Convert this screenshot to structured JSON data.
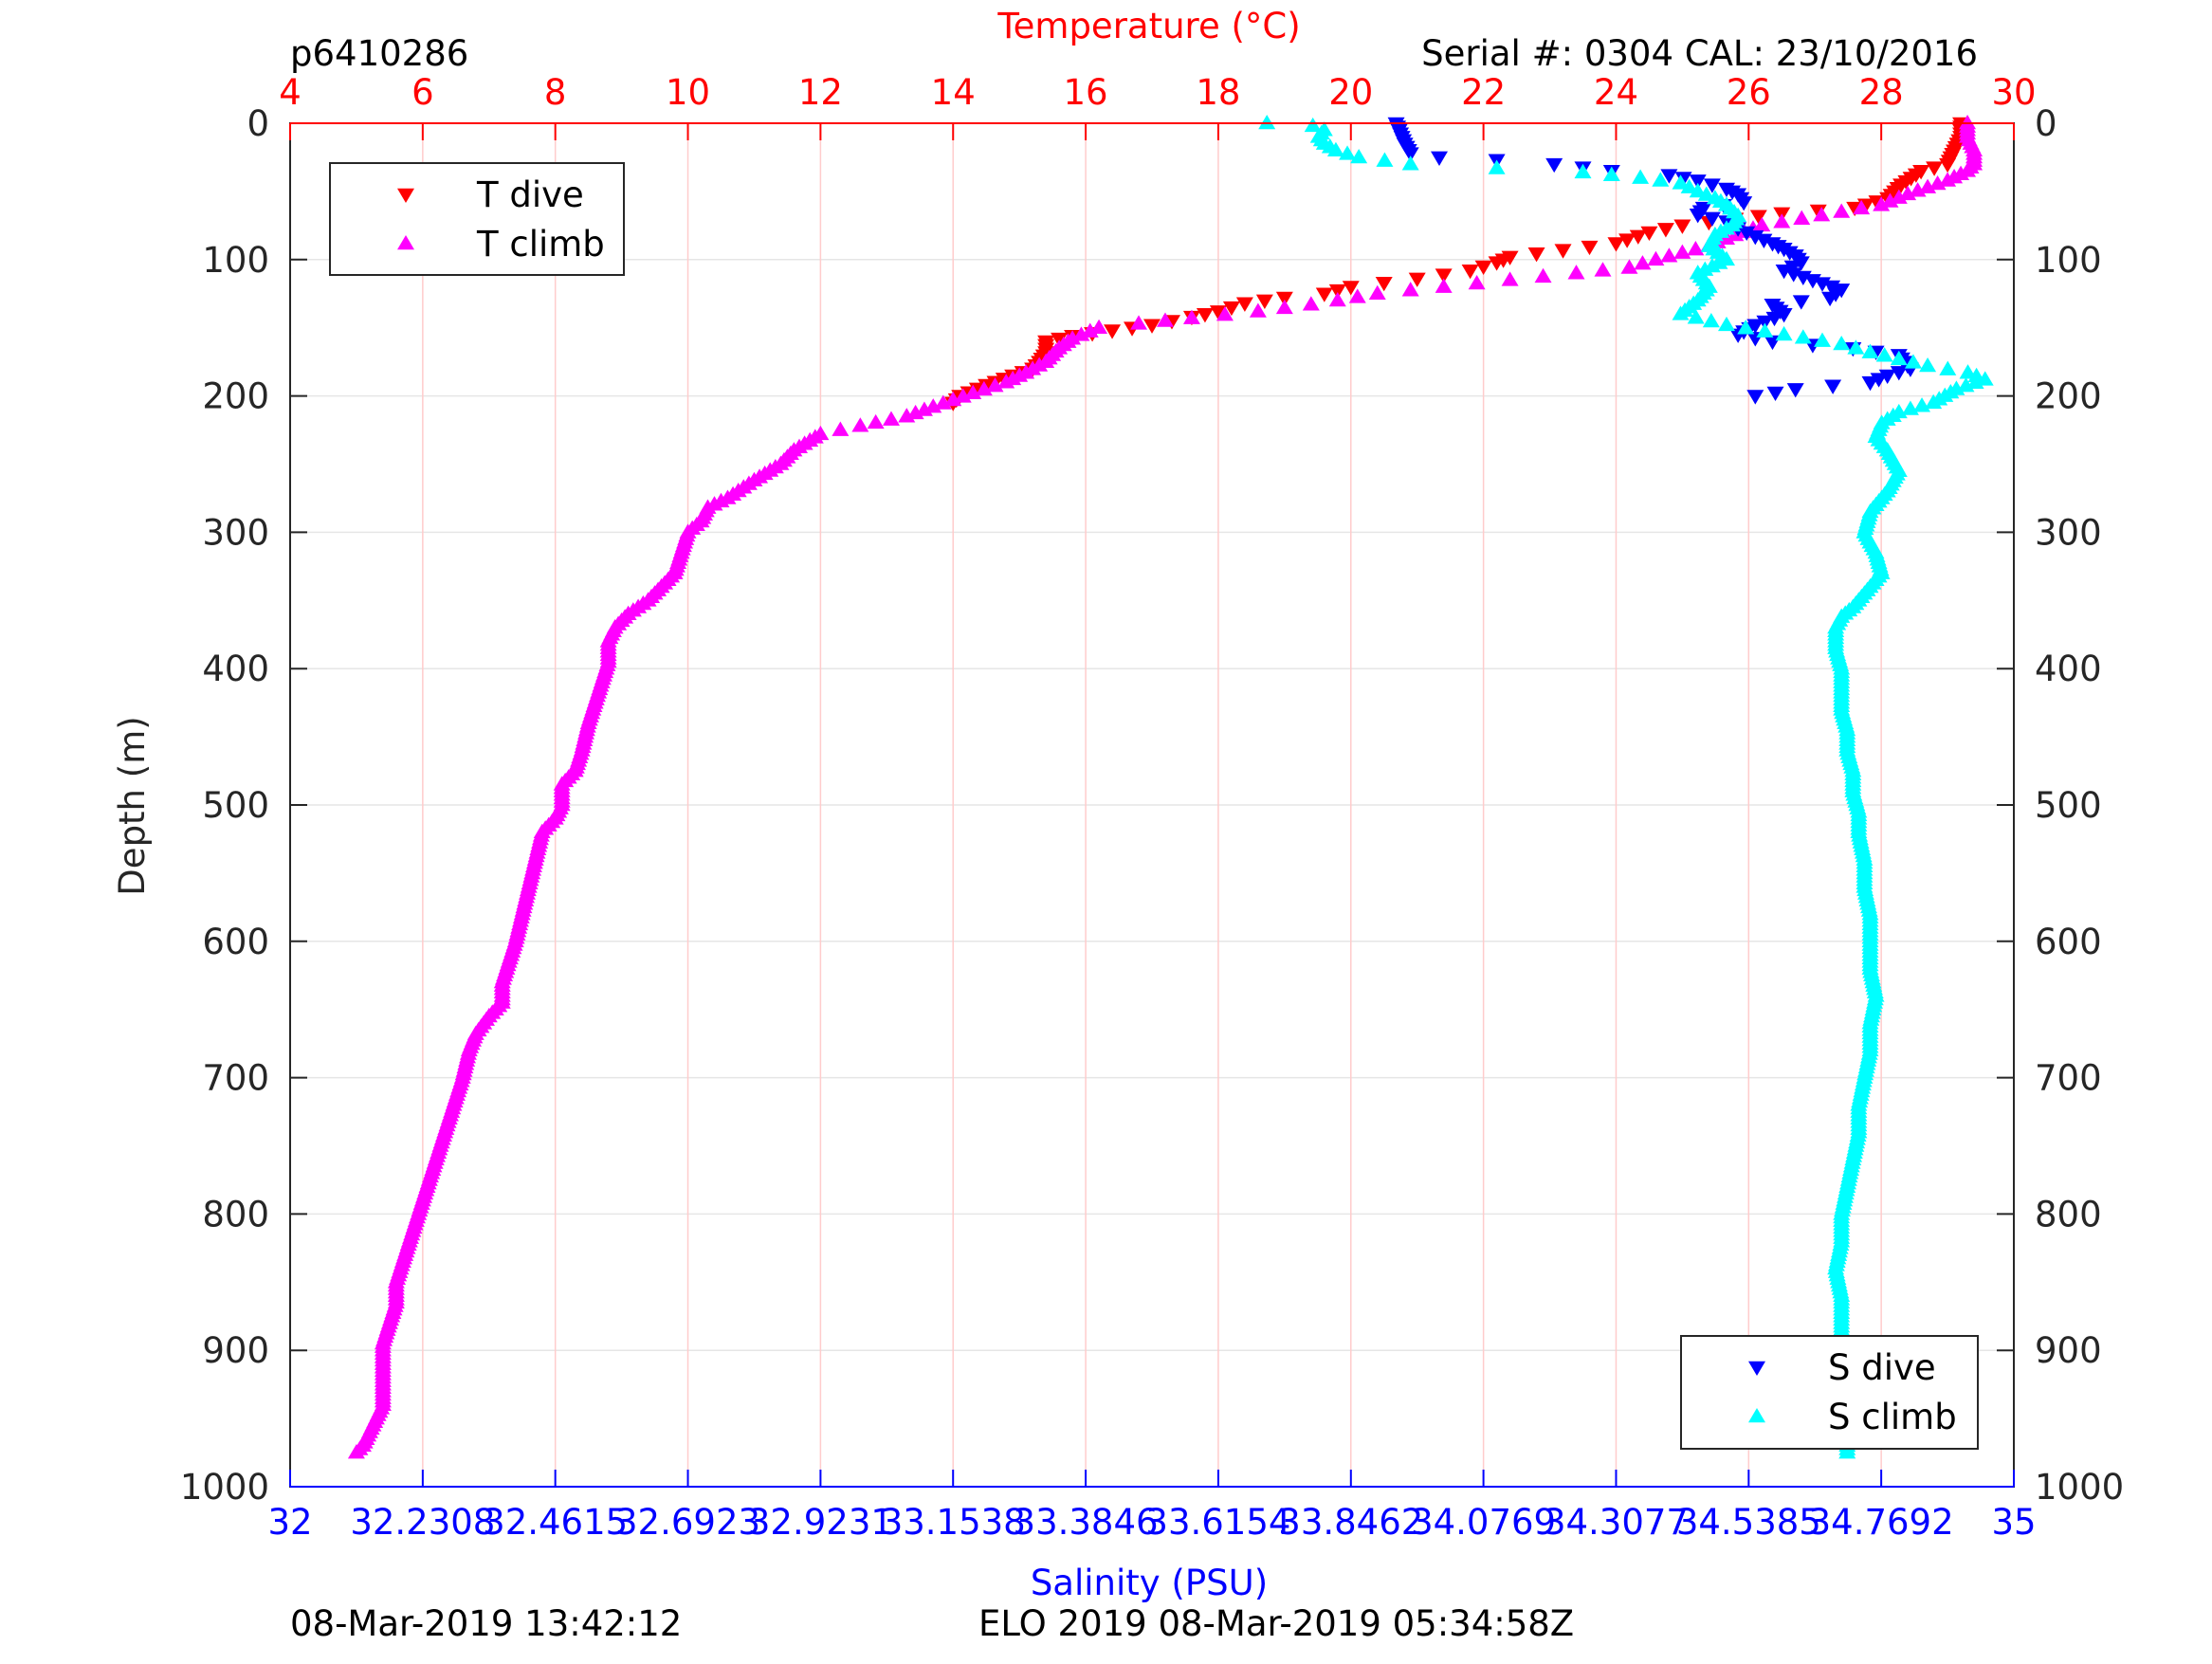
{
  "header": {
    "glider_id": "p6410286",
    "serial_cal": "Serial #: 0304  CAL: 23/10/2016"
  },
  "footer": {
    "plot_time": "08-Mar-2019 13:42:12",
    "mission": "ELO 2019 08-Mar-2019 05:34:58Z"
  },
  "colors": {
    "t_dive": "#ff0000",
    "t_climb": "#ff00ff",
    "s_dive": "#0000ff",
    "s_climb": "#00ffff",
    "temperature_axis": "#ff0000",
    "salinity_axis": "#0000ff",
    "grid": "#ffcccc"
  },
  "chart_data": {
    "type": "scatter",
    "ylabel": "Depth (m)",
    "ylim": [
      0,
      1000
    ],
    "y_reversed": true,
    "y_ticks": [
      "0",
      "100",
      "200",
      "300",
      "400",
      "500",
      "600",
      "700",
      "800",
      "900",
      "1000"
    ],
    "temperature_axis": {
      "label": "Temperature (°C)",
      "position": "top",
      "xlim": [
        4,
        30
      ],
      "ticks": [
        "4",
        "6",
        "8",
        "10",
        "12",
        "14",
        "16",
        "18",
        "20",
        "22",
        "24",
        "26",
        "28",
        "30"
      ]
    },
    "salinity_axis": {
      "label": "Salinity (PSU)",
      "position": "bottom",
      "xlim": [
        32,
        35
      ],
      "ticks": [
        "32",
        "32.2308",
        "32.4615",
        "32.6923",
        "32.9231",
        "33.1538",
        "33.3846",
        "33.6154",
        "33.8462",
        "34.0769",
        "34.3077",
        "34.5385",
        "34.7692",
        "35"
      ]
    },
    "grid": true,
    "legends": [
      {
        "position": "top-left",
        "entries": [
          {
            "label": "T dive",
            "marker": "triangle-down",
            "color": "#ff0000"
          },
          {
            "label": "T climb",
            "marker": "triangle-up",
            "color": "#ff00ff"
          }
        ]
      },
      {
        "position": "bottom-right",
        "entries": [
          {
            "label": "S dive",
            "marker": "triangle-down",
            "color": "#0000ff"
          },
          {
            "label": "S climb",
            "marker": "triangle-up",
            "color": "#00ffff"
          }
        ]
      }
    ],
    "series": [
      {
        "name": "T dive",
        "axis": "temperature",
        "marker": "triangle-down",
        "color": "#ff0000",
        "points": [
          [
            29.2,
            0
          ],
          [
            29.2,
            10
          ],
          [
            29.1,
            20
          ],
          [
            29.0,
            30
          ],
          [
            28.6,
            35
          ],
          [
            28.3,
            45
          ],
          [
            28.1,
            55
          ],
          [
            27.6,
            62
          ],
          [
            26.5,
            66
          ],
          [
            25.8,
            70
          ],
          [
            25.0,
            75
          ],
          [
            24.5,
            80
          ],
          [
            24.0,
            88
          ],
          [
            23.2,
            93
          ],
          [
            22.4,
            98
          ],
          [
            22.2,
            102
          ],
          [
            21.8,
            108
          ],
          [
            21.0,
            114
          ],
          [
            20.0,
            120
          ],
          [
            19.6,
            125
          ],
          [
            19.0,
            128
          ],
          [
            18.4,
            132
          ],
          [
            18.0,
            138
          ],
          [
            17.6,
            142
          ],
          [
            17.0,
            148
          ],
          [
            16.4,
            152
          ],
          [
            15.8,
            156
          ],
          [
            15.4,
            160
          ],
          [
            15.4,
            168
          ],
          [
            15.3,
            175
          ],
          [
            15.2,
            180
          ],
          [
            14.9,
            185
          ],
          [
            14.5,
            192
          ],
          [
            14.1,
            200
          ],
          [
            14.0,
            205
          ]
        ]
      },
      {
        "name": "T climb",
        "axis": "temperature",
        "marker": "triangle-up",
        "color": "#ff00ff",
        "points": [
          [
            29.3,
            0
          ],
          [
            29.3,
            10
          ],
          [
            29.4,
            20
          ],
          [
            29.4,
            30
          ],
          [
            29.3,
            35
          ],
          [
            29.0,
            42
          ],
          [
            28.4,
            52
          ],
          [
            28.0,
            60
          ],
          [
            27.4,
            65
          ],
          [
            26.8,
            70
          ],
          [
            26.2,
            75
          ],
          [
            25.8,
            82
          ],
          [
            25.4,
            90
          ],
          [
            25.0,
            95
          ],
          [
            24.6,
            100
          ],
          [
            24.2,
            106
          ],
          [
            23.4,
            110
          ],
          [
            22.4,
            115
          ],
          [
            21.4,
            120
          ],
          [
            20.4,
            125
          ],
          [
            19.8,
            130
          ],
          [
            19.4,
            133
          ],
          [
            18.6,
            138
          ],
          [
            17.6,
            143
          ],
          [
            16.8,
            147
          ],
          [
            16.2,
            150
          ],
          [
            15.8,
            158
          ],
          [
            15.6,
            165
          ],
          [
            15.4,
            175
          ],
          [
            15.1,
            183
          ],
          [
            14.8,
            190
          ],
          [
            14.3,
            198
          ],
          [
            13.7,
            208
          ],
          [
            13.3,
            215
          ],
          [
            12.6,
            222
          ],
          [
            12.0,
            228
          ],
          [
            11.6,
            240
          ],
          [
            11.4,
            250
          ],
          [
            11.0,
            262
          ],
          [
            10.6,
            275
          ],
          [
            10.3,
            282
          ],
          [
            10.2,
            292
          ],
          [
            10.0,
            300
          ],
          [
            9.9,
            315
          ],
          [
            9.8,
            330
          ],
          [
            9.6,
            340
          ],
          [
            9.4,
            350
          ],
          [
            9.1,
            360
          ],
          [
            8.9,
            370
          ],
          [
            8.8,
            380
          ],
          [
            8.8,
            395
          ],
          [
            8.7,
            410
          ],
          [
            8.6,
            425
          ],
          [
            8.5,
            440
          ],
          [
            8.4,
            460
          ],
          [
            8.3,
            475
          ],
          [
            8.1,
            485
          ],
          [
            8.1,
            500
          ],
          [
            8.0,
            510
          ],
          [
            7.8,
            520
          ],
          [
            7.7,
            540
          ],
          [
            7.6,
            560
          ],
          [
            7.5,
            580
          ],
          [
            7.4,
            600
          ],
          [
            7.3,
            615
          ],
          [
            7.2,
            630
          ],
          [
            7.2,
            645
          ],
          [
            7.0,
            655
          ],
          [
            6.8,
            668
          ],
          [
            6.7,
            680
          ],
          [
            6.6,
            700
          ],
          [
            6.5,
            715
          ],
          [
            6.4,
            730
          ],
          [
            6.3,
            745
          ],
          [
            6.2,
            760
          ],
          [
            6.1,
            775
          ],
          [
            6.0,
            790
          ],
          [
            5.9,
            805
          ],
          [
            5.8,
            820
          ],
          [
            5.7,
            835
          ],
          [
            5.6,
            850
          ],
          [
            5.6,
            865
          ],
          [
            5.5,
            880
          ],
          [
            5.4,
            895
          ],
          [
            5.4,
            910
          ],
          [
            5.4,
            925
          ],
          [
            5.4,
            940
          ],
          [
            5.3,
            950
          ],
          [
            5.2,
            960
          ],
          [
            5.1,
            970
          ],
          [
            5.0,
            975
          ]
        ]
      },
      {
        "name": "S dive",
        "axis": "salinity",
        "marker": "triangle-down",
        "color": "#0000ff",
        "points": [
          [
            33.925,
            0
          ],
          [
            33.93,
            5
          ],
          [
            33.935,
            10
          ],
          [
            33.94,
            15
          ],
          [
            33.95,
            22
          ],
          [
            34.0,
            25
          ],
          [
            34.1,
            27
          ],
          [
            34.2,
            30
          ],
          [
            34.3,
            35
          ],
          [
            34.4,
            38
          ],
          [
            34.45,
            42
          ],
          [
            34.5,
            48
          ],
          [
            34.52,
            52
          ],
          [
            34.53,
            58
          ],
          [
            34.46,
            62
          ],
          [
            34.45,
            67
          ],
          [
            34.5,
            72
          ],
          [
            34.52,
            77
          ],
          [
            34.55,
            83
          ],
          [
            34.58,
            88
          ],
          [
            34.6,
            92
          ],
          [
            34.62,
            97
          ],
          [
            34.63,
            102
          ],
          [
            34.6,
            108
          ],
          [
            34.65,
            115
          ],
          [
            34.7,
            122
          ],
          [
            34.68,
            128
          ],
          [
            34.58,
            133
          ],
          [
            34.6,
            140
          ],
          [
            34.55,
            148
          ],
          [
            34.52,
            155
          ],
          [
            34.58,
            160
          ],
          [
            34.72,
            165
          ],
          [
            34.8,
            170
          ],
          [
            34.81,
            175
          ],
          [
            34.82,
            180
          ],
          [
            34.78,
            185
          ],
          [
            34.75,
            190
          ],
          [
            34.62,
            195
          ],
          [
            34.55,
            200
          ]
        ]
      },
      {
        "name": "S climb",
        "axis": "salinity",
        "marker": "triangle-up",
        "color": "#00ffff",
        "points": [
          [
            33.7,
            0
          ],
          [
            33.78,
            2
          ],
          [
            33.8,
            5
          ],
          [
            33.79,
            10
          ],
          [
            33.8,
            15
          ],
          [
            33.82,
            20
          ],
          [
            33.86,
            25
          ],
          [
            33.95,
            30
          ],
          [
            34.1,
            33
          ],
          [
            34.25,
            36
          ],
          [
            34.35,
            40
          ],
          [
            34.42,
            44
          ],
          [
            34.45,
            50
          ],
          [
            34.48,
            55
          ],
          [
            34.5,
            60
          ],
          [
            34.52,
            68
          ],
          [
            34.51,
            75
          ],
          [
            34.48,
            82
          ],
          [
            34.47,
            90
          ],
          [
            34.5,
            100
          ],
          [
            34.45,
            110
          ],
          [
            34.47,
            120
          ],
          [
            34.45,
            130
          ],
          [
            34.42,
            140
          ],
          [
            34.5,
            148
          ],
          [
            34.6,
            155
          ],
          [
            34.7,
            162
          ],
          [
            34.75,
            168
          ],
          [
            34.8,
            173
          ],
          [
            34.85,
            178
          ],
          [
            34.92,
            183
          ],
          [
            34.95,
            188
          ],
          [
            34.9,
            195
          ],
          [
            34.88,
            200
          ],
          [
            34.86,
            205
          ],
          [
            34.8,
            212
          ],
          [
            34.77,
            220
          ],
          [
            34.76,
            230
          ],
          [
            34.78,
            240
          ],
          [
            34.8,
            255
          ],
          [
            34.78,
            270
          ],
          [
            34.75,
            285
          ],
          [
            34.74,
            300
          ],
          [
            34.76,
            315
          ],
          [
            34.77,
            330
          ],
          [
            34.74,
            345
          ],
          [
            34.72,
            355
          ],
          [
            34.7,
            362
          ],
          [
            34.69,
            370
          ],
          [
            34.69,
            385
          ],
          [
            34.7,
            400
          ],
          [
            34.7,
            415
          ],
          [
            34.7,
            430
          ],
          [
            34.71,
            445
          ],
          [
            34.71,
            460
          ],
          [
            34.72,
            475
          ],
          [
            34.72,
            490
          ],
          [
            34.73,
            505
          ],
          [
            34.73,
            520
          ],
          [
            34.74,
            540
          ],
          [
            34.74,
            560
          ],
          [
            34.75,
            580
          ],
          [
            34.75,
            600
          ],
          [
            34.75,
            620
          ],
          [
            34.76,
            640
          ],
          [
            34.75,
            660
          ],
          [
            34.75,
            680
          ],
          [
            34.74,
            700
          ],
          [
            34.73,
            720
          ],
          [
            34.73,
            740
          ],
          [
            34.72,
            760
          ],
          [
            34.71,
            780
          ],
          [
            34.7,
            800
          ],
          [
            34.7,
            820
          ],
          [
            34.69,
            840
          ],
          [
            34.7,
            860
          ],
          [
            34.7,
            880
          ],
          [
            34.7,
            900
          ],
          [
            34.71,
            920
          ],
          [
            34.71,
            940
          ],
          [
            34.71,
            960
          ],
          [
            34.71,
            975
          ]
        ]
      }
    ]
  }
}
